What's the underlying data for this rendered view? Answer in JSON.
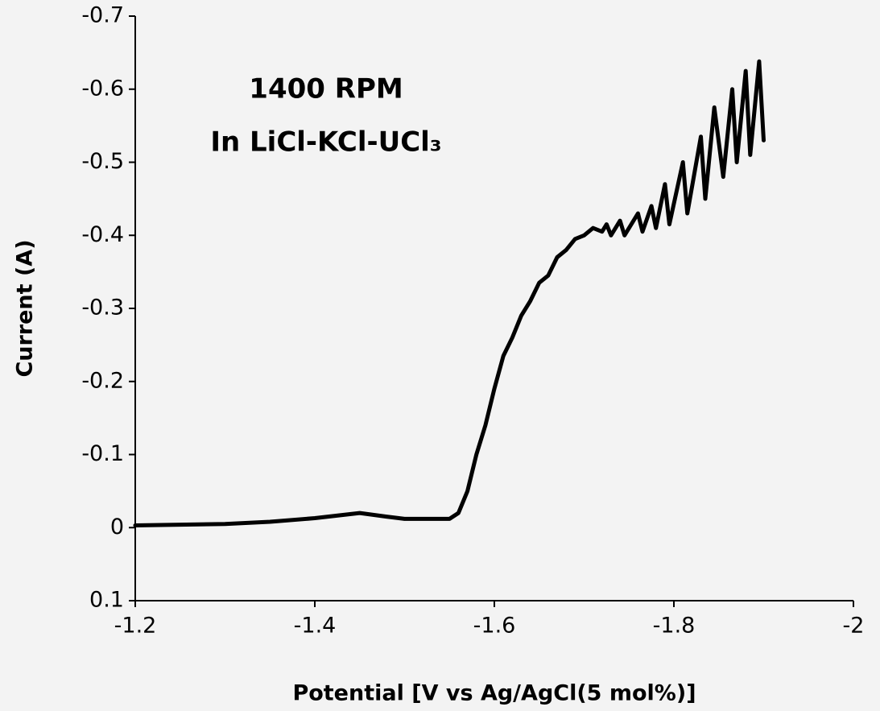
{
  "chart_data": {
    "type": "line",
    "annotations": [
      "1400 RPM",
      "In LiCl-KCl-UCl₃"
    ],
    "x_label": "Potential [V vs Ag/AgCl(5 mol%)]",
    "y_label": "Current (A)",
    "xlim": [
      -1.2,
      -2
    ],
    "xticks": [
      -1.2,
      -1.4,
      -1.6,
      -1.8,
      -2
    ],
    "ylim": [
      0.1,
      -0.7
    ],
    "yticks": [
      -0.7,
      -0.6,
      -0.5,
      -0.4,
      -0.3,
      -0.2,
      -0.1,
      0,
      0.1
    ],
    "series": [
      {
        "color": "#000000",
        "x": [
          -1.2,
          -1.3,
          -1.35,
          -1.4,
          -1.45,
          -1.48,
          -1.5,
          -1.55,
          -1.56,
          -1.57,
          -1.58,
          -1.59,
          -1.6,
          -1.61,
          -1.62,
          -1.63,
          -1.64,
          -1.65,
          -1.66,
          -1.67,
          -1.68,
          -1.69,
          -1.7,
          -1.71,
          -1.72,
          -1.725,
          -1.73,
          -1.74,
          -1.745,
          -1.76,
          -1.765,
          -1.775,
          -1.78,
          -1.79,
          -1.795,
          -1.81,
          -1.815,
          -1.83,
          -1.835,
          -1.845,
          -1.855,
          -1.865,
          -1.87,
          -1.88,
          -1.885,
          -1.895,
          -1.9
        ],
        "values": [
          -0.003,
          -0.005,
          -0.008,
          -0.013,
          -0.02,
          -0.015,
          -0.012,
          -0.012,
          -0.02,
          -0.05,
          -0.1,
          -0.14,
          -0.19,
          -0.235,
          -0.26,
          -0.29,
          -0.31,
          -0.335,
          -0.345,
          -0.37,
          -0.38,
          -0.395,
          -0.4,
          -0.41,
          -0.405,
          -0.415,
          -0.4,
          -0.42,
          -0.4,
          -0.43,
          -0.405,
          -0.44,
          -0.41,
          -0.47,
          -0.415,
          -0.5,
          -0.43,
          -0.535,
          -0.45,
          -0.575,
          -0.48,
          -0.6,
          -0.5,
          -0.625,
          -0.51,
          -0.638,
          -0.53
        ]
      }
    ]
  }
}
